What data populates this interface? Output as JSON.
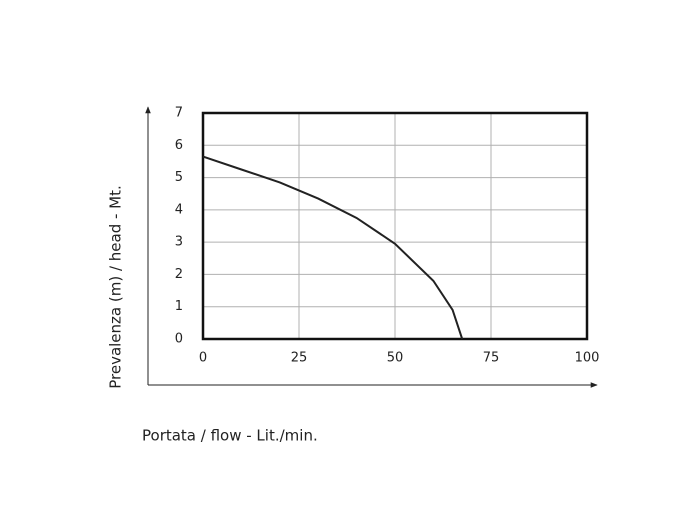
{
  "chart_data": {
    "type": "line",
    "x_label": "Portata / flow - Lit./min.",
    "y_label": "Prevalenza (m) / head - Mt.",
    "x": [
      0,
      10,
      20,
      30,
      40,
      50,
      60,
      65,
      67.5
    ],
    "series": [
      {
        "color": "#222222",
        "values": [
          5.65,
          5.25,
          4.85,
          4.35,
          3.75,
          2.95,
          1.8,
          0.9,
          0
        ]
      }
    ],
    "xlim": [
      0,
      100
    ],
    "xticks": [
      0,
      25,
      50,
      75,
      100
    ],
    "ylim": [
      0,
      7
    ],
    "yticks": [
      0,
      1,
      2,
      3,
      4,
      5,
      6,
      7
    ],
    "grid": true
  }
}
